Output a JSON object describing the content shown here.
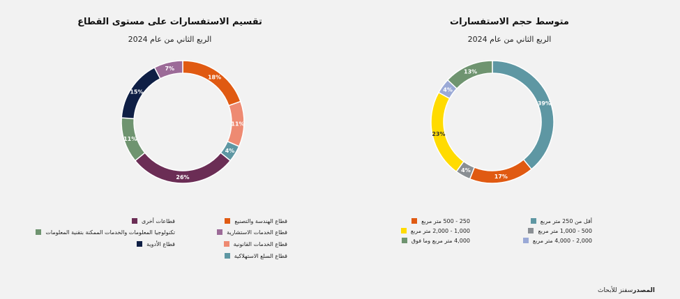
{
  "chart_data": [
    {
      "type": "pie",
      "title": "متوسط حجم الاستفسارات",
      "subtitle": "الربع الثاني من عام 2024",
      "categories": [
        "أقل من 250 متر مربع",
        "250 - 500 متر مربع",
        "500 - 1,000 متر مربع",
        "1,000 - 2,000 متر مربع",
        "2,000 - 4,000 متر مربع",
        "4,000 متر مربع وما فوق"
      ],
      "values": [
        39,
        17,
        4,
        23,
        4,
        13
      ],
      "labels": [
        "39%",
        "17%",
        "4%",
        "23%",
        "4%",
        "13%"
      ],
      "colors": [
        "#5e97a3",
        "#e05a12",
        "#8a8f94",
        "#ffdb00",
        "#9aa9d6",
        "#6f9470"
      ],
      "legend_position": "bottom"
    },
    {
      "type": "pie",
      "title": "تقسيم الاستفسارات على مستوى القطاع",
      "subtitle": "الربع الثاني من عام 2024",
      "categories": [
        "قطاع الهندسة والتصنيع",
        "قطاع الخدمات القانونية",
        "قطاع السلع الاستهلاكية",
        "قطاعات أخرى",
        "تكنولوجيا المعلومات والخدمات الممكنة بتقنية المعلومات",
        "قطاع الأدوية",
        "قطاع الخدمات الاستشارية"
      ],
      "values": [
        18,
        11,
        4,
        26,
        11,
        15,
        7
      ],
      "labels": [
        "18%",
        "11%",
        "4%",
        "26%",
        "11%",
        "15%",
        "7%"
      ],
      "colors": [
        "#e05a12",
        "#ee8a72",
        "#5e97a3",
        "#6b2d55",
        "#6f9470",
        "#0f1f45",
        "#9c6b98"
      ],
      "legend_position": "bottom"
    }
  ],
  "source": {
    "label": "المصدر",
    "text": "سفنز للأبحاث"
  }
}
